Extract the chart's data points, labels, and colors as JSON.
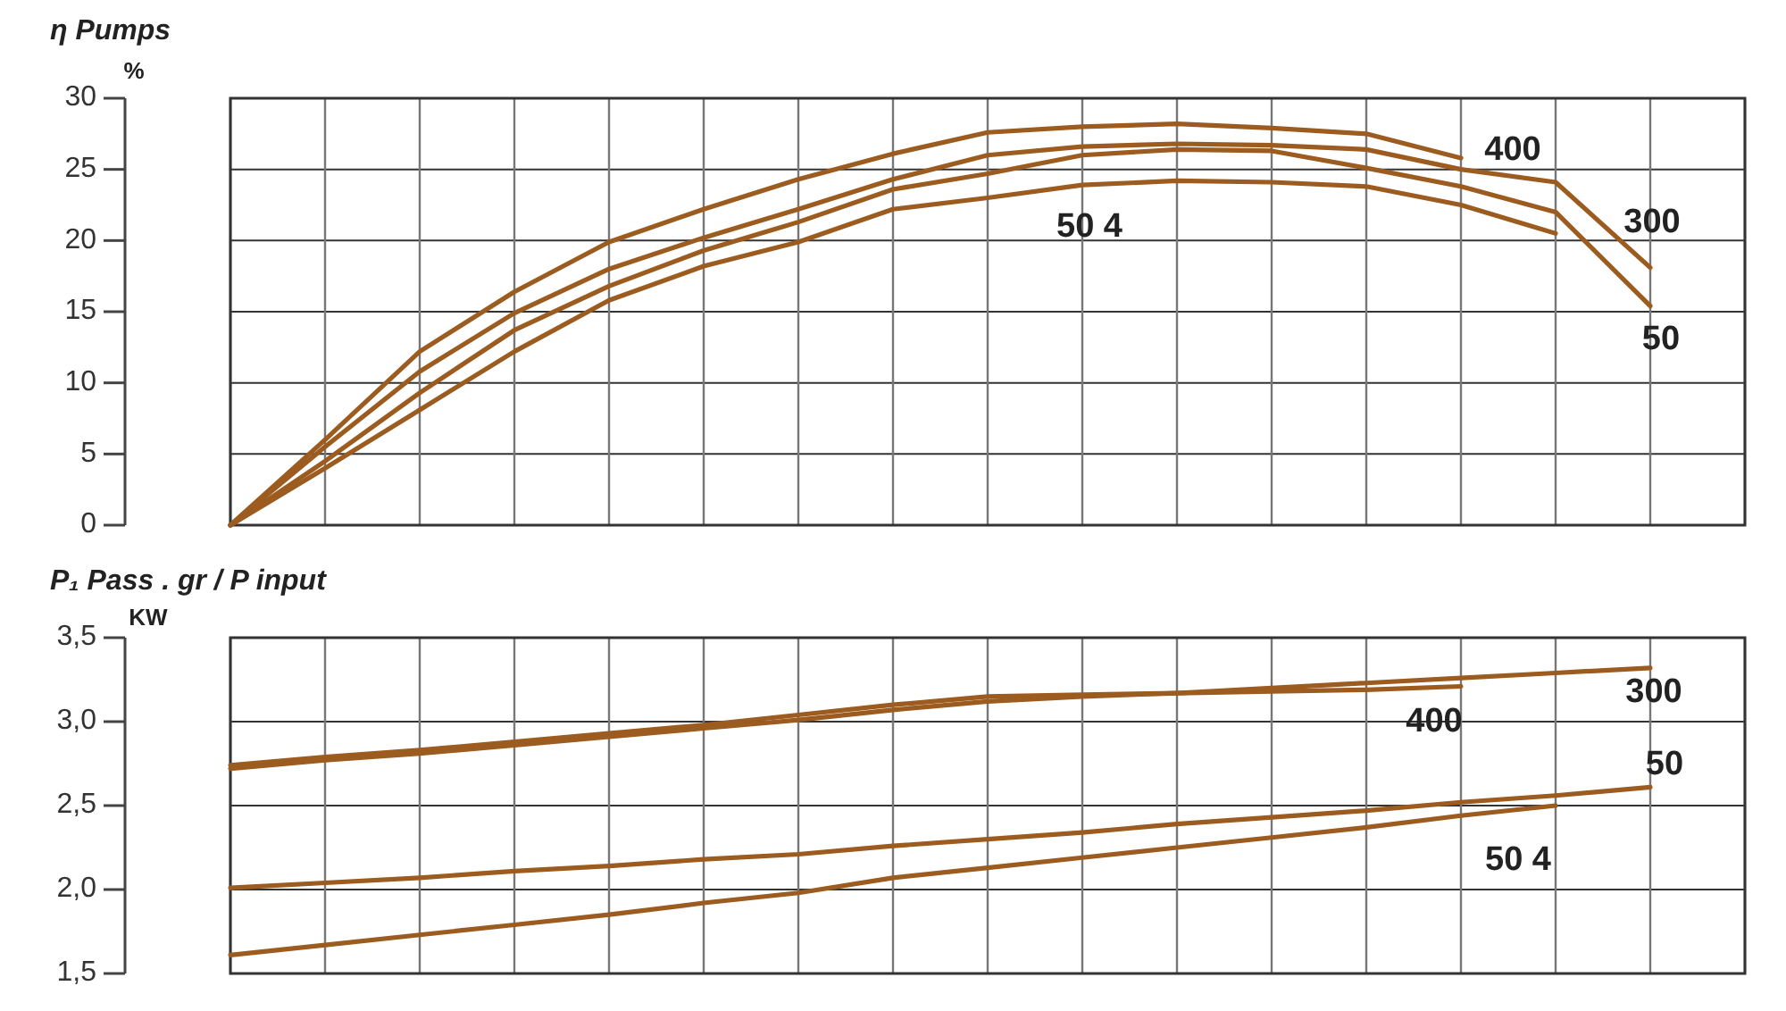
{
  "chart_data": [
    {
      "type": "line",
      "ylabel": "η Pumps",
      "annotations": [
        "%"
      ],
      "categories": [
        null,
        null,
        null,
        null,
        null,
        null,
        null,
        null,
        null,
        null,
        null,
        null,
        null,
        null,
        null,
        null,
        null
      ],
      "ylim": [
        0,
        30
      ],
      "yticks": [
        0,
        5,
        10,
        15,
        20,
        25,
        30
      ],
      "grid": true,
      "tick_labels": "y",
      "marker": "none",
      "line_style": "solid",
      "series": [
        {
          "name": "400",
          "color": "#9c5b1f",
          "values": [
            0,
            6,
            12.2,
            16.4,
            19.9,
            22.2,
            24.3,
            26.1,
            27.6,
            28.0,
            28.2,
            27.9,
            27.5,
            25.8,
            null,
            null,
            null
          ]
        },
        {
          "name": "300",
          "color": "#9c5b1f",
          "values": [
            0,
            5.5,
            10.8,
            14.9,
            18.0,
            20.2,
            22.2,
            24.3,
            26.0,
            26.6,
            26.8,
            26.7,
            26.4,
            25.0,
            24.1,
            18.1,
            null
          ]
        },
        {
          "name": "50",
          "color": "#9c5b1f",
          "values": [
            0,
            4.5,
            9.3,
            13.7,
            16.8,
            19.3,
            21.3,
            23.6,
            24.7,
            26.0,
            26.4,
            26.3,
            25.1,
            23.8,
            22.0,
            15.4,
            null
          ]
        },
        {
          "name": "50 4",
          "color": "#9c5b1f",
          "values": [
            0,
            4,
            8.1,
            12.2,
            15.8,
            18.2,
            19.9,
            22.2,
            23.0,
            23.9,
            24.2,
            24.1,
            23.8,
            22.5,
            20.5,
            null,
            null
          ]
        }
      ]
    },
    {
      "type": "line",
      "ylabel": "P₁ Pass . gr / P input",
      "annotations": [
        "KW"
      ],
      "categories": [
        null,
        null,
        null,
        null,
        null,
        null,
        null,
        null,
        null,
        null,
        null,
        null,
        null,
        null,
        null,
        null,
        null
      ],
      "ylim": [
        1.5,
        3.5
      ],
      "yticks": [
        {
          "value": 1.5,
          "label": "1,5"
        },
        {
          "value": 2.0,
          "label": "2,0"
        },
        {
          "value": 2.5,
          "label": "2,5"
        },
        {
          "value": 3.0,
          "label": "3,0"
        },
        {
          "value": 3.5,
          "label": "3,5"
        }
      ],
      "grid": true,
      "tick_labels": "y",
      "marker": "none",
      "line_style": "solid",
      "series": [
        {
          "name": "400",
          "color": "#9c5b1f",
          "values": [
            2.74,
            2.79,
            2.83,
            2.88,
            2.93,
            2.98,
            3.04,
            3.1,
            3.15,
            3.16,
            3.17,
            3.18,
            3.19,
            3.21,
            null,
            null,
            null
          ]
        },
        {
          "name": "300",
          "color": "#9c5b1f",
          "values": [
            2.72,
            2.77,
            2.81,
            2.86,
            2.91,
            2.96,
            3.01,
            3.07,
            3.12,
            3.15,
            3.17,
            3.2,
            3.23,
            3.26,
            3.29,
            3.32,
            null
          ]
        },
        {
          "name": "50",
          "color": "#9c5b1f",
          "values": [
            2.01,
            2.04,
            2.07,
            2.11,
            2.14,
            2.18,
            2.21,
            2.26,
            2.3,
            2.34,
            2.39,
            2.43,
            2.47,
            2.52,
            2.56,
            2.61,
            null
          ]
        },
        {
          "name": "50 4",
          "color": "#9c5b1f",
          "values": [
            1.61,
            1.67,
            1.73,
            1.79,
            1.85,
            1.92,
            1.98,
            2.07,
            2.13,
            2.19,
            2.25,
            2.31,
            2.37,
            2.44,
            2.5,
            null,
            null
          ]
        }
      ]
    }
  ]
}
